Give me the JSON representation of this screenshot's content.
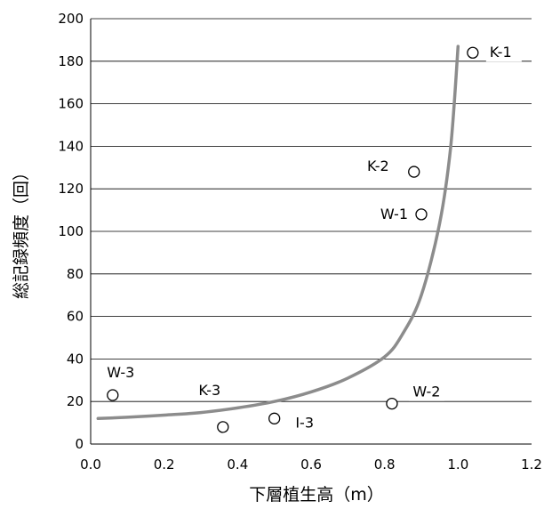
{
  "chart_data": {
    "type": "scatter",
    "title": "",
    "xlabel": "下層植生高（m）",
    "ylabel": "総記録頻度（回）",
    "xlim": [
      0,
      1.2
    ],
    "ylim": [
      0,
      200
    ],
    "x_ticks": [
      "0.0",
      "0.2",
      "0.4",
      "0.6",
      "0.8",
      "1.0",
      "1.2"
    ],
    "y_ticks": [
      "0",
      "20",
      "40",
      "60",
      "80",
      "100",
      "120",
      "140",
      "160",
      "180",
      "200"
    ],
    "grid": "horizontal",
    "points": [
      {
        "label": "K-1",
        "x": 1.04,
        "y": 184
      },
      {
        "label": "K-2",
        "x": 0.88,
        "y": 128
      },
      {
        "label": "W-1",
        "x": 0.9,
        "y": 108
      },
      {
        "label": "W-3",
        "x": 0.06,
        "y": 23
      },
      {
        "label": "K-3",
        "x": 0.36,
        "y": 8
      },
      {
        "label": "I-3",
        "x": 0.5,
        "y": 12
      },
      {
        "label": "W-2",
        "x": 0.82,
        "y": 19
      }
    ],
    "fit_curve": [
      [
        0.02,
        12
      ],
      [
        0.1,
        12.6
      ],
      [
        0.2,
        13.6
      ],
      [
        0.3,
        14.8
      ],
      [
        0.4,
        17
      ],
      [
        0.5,
        20
      ],
      [
        0.6,
        24.5
      ],
      [
        0.7,
        31
      ],
      [
        0.8,
        41
      ],
      [
        0.85,
        52
      ],
      [
        0.9,
        70
      ],
      [
        0.95,
        104
      ],
      [
        0.98,
        140
      ],
      [
        1.0,
        187
      ]
    ]
  }
}
